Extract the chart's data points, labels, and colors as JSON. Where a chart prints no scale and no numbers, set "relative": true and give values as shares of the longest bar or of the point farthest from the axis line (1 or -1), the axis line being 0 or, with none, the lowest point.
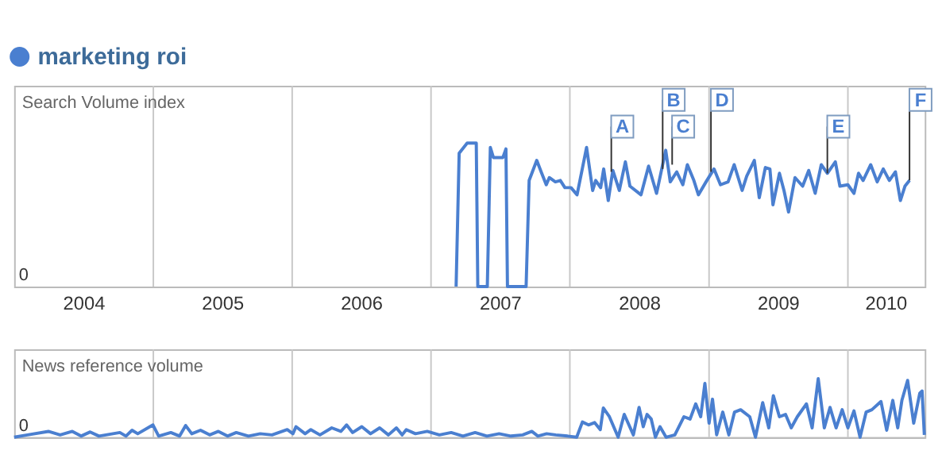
{
  "chart_data": [
    {
      "type": "line",
      "relative": true,
      "ylabel": "Search Volume index",
      "legend": "top left",
      "grid": "x",
      "tick_labels": "x",
      "xlim": [
        "2004-01-01",
        "2010-07-22"
      ],
      "xticks": [
        {
          "value": "2005-01-01",
          "label": null
        },
        {
          "value": "2006-01-01",
          "label": null
        },
        {
          "value": "2007-01-01",
          "label": null
        },
        {
          "value": "2008-01-01",
          "label": null
        },
        {
          "value": "2009-01-01",
          "label": null
        },
        {
          "value": "2010-01-01",
          "label": null
        },
        {
          "value": "2004-07-01",
          "label": "2004"
        },
        {
          "value": "2005-07-01",
          "label": "2005"
        },
        {
          "value": "2006-07-01",
          "label": "2006"
        },
        {
          "value": "2007-07-01",
          "label": "2007"
        },
        {
          "value": "2008-07-01",
          "label": "2008"
        },
        {
          "value": "2009-07-01",
          "label": "2009"
        },
        {
          "value": "2010-04-10",
          "label": "2010"
        }
      ],
      "series": [
        {
          "name": "marketing roi",
          "color": "#4a7fd0",
          "x": [
            "2007-03-08",
            "2007-03-16",
            "2007-04-06",
            "2007-04-30",
            "2007-05-04",
            "2007-05-29",
            "2007-06-06",
            "2007-06-14",
            "2007-07-09",
            "2007-07-17",
            "2007-07-21",
            "2007-09-08",
            "2007-09-16",
            "2007-10-06",
            "2007-10-19",
            "2007-10-31",
            "2007-11-08",
            "2007-11-24",
            "2007-12-07",
            "2007-12-19",
            "2008-01-04",
            "2008-01-20",
            "2008-02-14",
            "2008-03-01",
            "2008-03-09",
            "2008-03-22",
            "2008-03-30",
            "2008-04-11",
            "2008-04-23",
            "2008-05-10",
            "2008-05-26",
            "2008-06-07",
            "2008-07-06",
            "2008-07-26",
            "2008-08-16",
            "2008-09-09",
            "2008-09-21",
            "2008-10-08",
            "2008-10-24",
            "2008-11-05",
            "2008-11-22",
            "2008-12-04",
            "2008-12-24",
            "2009-01-14",
            "2009-01-31",
            "2009-02-20",
            "2009-03-08",
            "2009-03-29",
            "2009-04-10",
            "2009-04-30",
            "2009-05-13",
            "2009-05-29",
            "2009-06-10",
            "2009-06-18",
            "2009-07-05",
            "2009-07-17",
            "2009-07-29",
            "2009-08-15",
            "2009-09-04",
            "2009-09-20",
            "2009-10-07",
            "2009-10-23",
            "2009-11-08",
            "2009-11-29",
            "2009-12-11",
            "2010-01-01",
            "2010-01-17",
            "2010-01-29",
            "2010-02-10",
            "2010-03-02",
            "2010-03-19",
            "2010-04-04",
            "2010-04-20",
            "2010-05-06",
            "2010-05-19",
            "2010-05-31",
            "2010-06-12"
          ],
          "values": [
            0,
            0.93,
            1.0,
            1.0,
            0,
            0,
            0.97,
            0.9,
            0.9,
            0.96,
            0,
            0,
            0.74,
            0.88,
            0.79,
            0.71,
            0.76,
            0.73,
            0.74,
            0.69,
            0.69,
            0.64,
            0.97,
            0.67,
            0.74,
            0.69,
            0.82,
            0.6,
            0.81,
            0.67,
            0.87,
            0.7,
            0.64,
            0.84,
            0.65,
            0.95,
            0.73,
            0.8,
            0.71,
            0.85,
            0.74,
            0.64,
            0.73,
            0.82,
            0.71,
            0.73,
            0.85,
            0.67,
            0.77,
            0.88,
            0.62,
            0.83,
            0.82,
            0.57,
            0.79,
            0.67,
            0.52,
            0.76,
            0.7,
            0.81,
            0.65,
            0.85,
            0.79,
            0.87,
            0.7,
            0.71,
            0.65,
            0.79,
            0.74,
            0.85,
            0.73,
            0.82,
            0.74,
            0.8,
            0.6,
            0.7,
            0.74
          ]
        }
      ],
      "annotations": [
        {
          "text": "A",
          "x": "2008-04-19",
          "y": 0.8
        },
        {
          "text": "B",
          "x": "2008-09-01",
          "y": 0.82
        },
        {
          "text": "C",
          "x": "2008-09-26",
          "y": 0.85
        },
        {
          "text": "D",
          "x": "2009-01-06",
          "y": 0.8
        },
        {
          "text": "E",
          "x": "2009-11-08",
          "y": 0.79
        },
        {
          "text": "F",
          "x": "2010-06-12",
          "y": 0.74
        },
        "0"
      ]
    },
    {
      "type": "line",
      "relative": true,
      "ylabel": "News reference volume",
      "grid": "x",
      "tick_labels": false,
      "xlim": [
        "2004-01-01",
        "2010-07-22"
      ],
      "xticks": [
        {
          "value": "2005-01-01",
          "label": null
        },
        {
          "value": "2006-01-01",
          "label": null
        },
        {
          "value": "2007-01-01",
          "label": null
        },
        {
          "value": "2008-01-01",
          "label": null
        },
        {
          "value": "2009-01-01",
          "label": null
        },
        {
          "value": "2010-01-01",
          "label": null
        }
      ],
      "series": [
        {
          "color": "#4a7fd0",
          "x": [
            "2004-01-01",
            "2004-02-05",
            "2004-03-31",
            "2004-05-01",
            "2004-06-02",
            "2004-06-25",
            "2004-07-19",
            "2004-08-11",
            "2004-10-05",
            "2004-10-21",
            "2004-11-06",
            "2004-11-21",
            "2004-12-31",
            "2005-01-15",
            "2005-02-16",
            "2005-03-11",
            "2005-03-27",
            "2005-04-12",
            "2005-05-05",
            "2005-05-29",
            "2005-06-21",
            "2005-07-15",
            "2005-08-07",
            "2005-09-08",
            "2005-10-09",
            "2005-11-09",
            "2005-12-19",
            "2006-01-03",
            "2006-01-11",
            "2006-02-04",
            "2006-02-19",
            "2006-03-15",
            "2006-04-15",
            "2006-05-09",
            "2006-05-24",
            "2006-06-09",
            "2006-07-03",
            "2006-07-26",
            "2006-08-19",
            "2006-09-11",
            "2006-10-02",
            "2006-10-17",
            "2006-10-28",
            "2006-11-21",
            "2006-12-22",
            "2007-01-23",
            "2007-02-23",
            "2007-03-26",
            "2007-04-27",
            "2007-05-28",
            "2007-06-29",
            "2007-07-30",
            "2007-08-30",
            "2007-09-23",
            "2007-10-09",
            "2007-11-01",
            "2007-11-25",
            "2007-12-26",
            "2008-01-19",
            "2008-02-03",
            "2008-02-19",
            "2008-03-06",
            "2008-03-21",
            "2008-03-29",
            "2008-04-14",
            "2008-05-07",
            "2008-05-23",
            "2008-06-16",
            "2008-07-01",
            "2008-07-12",
            "2008-07-22",
            "2008-08-02",
            "2008-08-13",
            "2008-08-25",
            "2008-09-10",
            "2008-10-03",
            "2008-10-27",
            "2008-11-12",
            "2008-11-27",
            "2008-12-10",
            "2008-12-21",
            "2009-01-01",
            "2009-01-10",
            "2009-01-21",
            "2009-02-06",
            "2009-02-22",
            "2009-03-09",
            "2009-03-25",
            "2009-04-18",
            "2009-05-03",
            "2009-05-22",
            "2009-06-07",
            "2009-06-19",
            "2009-07-05",
            "2009-07-21",
            "2009-08-05",
            "2009-08-21",
            "2009-09-14",
            "2009-09-29",
            "2009-10-15",
            "2009-10-31",
            "2009-11-15",
            "2009-12-01",
            "2009-12-17",
            "2010-01-01",
            "2010-01-17",
            "2010-02-02",
            "2010-02-18",
            "2010-03-05",
            "2010-03-29",
            "2010-04-13",
            "2010-04-29",
            "2010-05-12",
            "2010-05-23",
            "2010-06-07",
            "2010-06-23",
            "2010-07-09",
            "2010-07-15",
            "2010-07-21"
          ],
          "values": [
            0,
            0.04,
            0.1,
            0.04,
            0.1,
            0.02,
            0.09,
            0.02,
            0.08,
            0.02,
            0.12,
            0.06,
            0.21,
            0.02,
            0.08,
            0.02,
            0.2,
            0.06,
            0.12,
            0.04,
            0.1,
            0.02,
            0.08,
            0.02,
            0.06,
            0.04,
            0.13,
            0.06,
            0.18,
            0.06,
            0.13,
            0.04,
            0.16,
            0.1,
            0.21,
            0.08,
            0.18,
            0.06,
            0.16,
            0.04,
            0.16,
            0.04,
            0.13,
            0.06,
            0.1,
            0.04,
            0.08,
            0.02,
            0.08,
            0.02,
            0.06,
            0.02,
            0.04,
            0.1,
            0.02,
            0.06,
            0.04,
            0.02,
            0,
            0.26,
            0.21,
            0.25,
            0.13,
            0.5,
            0.35,
            0,
            0.39,
            0.04,
            0.51,
            0.18,
            0.39,
            0.31,
            0,
            0.18,
            0,
            0.04,
            0.35,
            0.31,
            0.57,
            0.35,
            0.92,
            0.24,
            0.65,
            0.04,
            0.43,
            0.04,
            0.43,
            0.47,
            0.35,
            0,
            0.59,
            0.16,
            0.71,
            0.35,
            0.39,
            0.16,
            0.35,
            0.57,
            0.16,
            1.0,
            0.16,
            0.51,
            0.16,
            0.47,
            0.16,
            0.45,
            0,
            0.43,
            0.47,
            0.61,
            0.12,
            0.63,
            0.16,
            0.63,
            0.97,
            0.24,
            0.75,
            0.79,
            0.04
          ]
        }
      ],
      "annotations": [
        "0"
      ]
    }
  ]
}
